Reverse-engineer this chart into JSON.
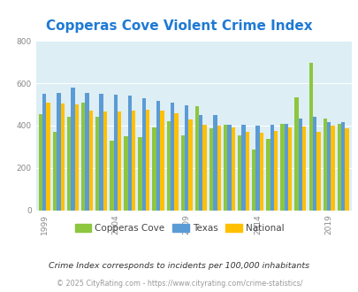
{
  "title": "Copperas Cove Violent Crime Index",
  "years": [
    1999,
    2000,
    2001,
    2002,
    2003,
    2004,
    2005,
    2006,
    2007,
    2008,
    2009,
    2010,
    2011,
    2012,
    2013,
    2014,
    2015,
    2016,
    2017,
    2018,
    2019,
    2020
  ],
  "copperas_cove": [
    455,
    370,
    440,
    510,
    440,
    330,
    350,
    345,
    390,
    420,
    355,
    490,
    385,
    405,
    355,
    285,
    335,
    410,
    535,
    695,
    435,
    410
  ],
  "texas": [
    550,
    555,
    580,
    555,
    550,
    545,
    540,
    530,
    515,
    510,
    495,
    450,
    450,
    405,
    405,
    400,
    405,
    410,
    435,
    440,
    415,
    415
  ],
  "national": [
    510,
    505,
    500,
    470,
    465,
    465,
    470,
    475,
    470,
    460,
    430,
    405,
    400,
    390,
    370,
    365,
    375,
    390,
    395,
    370,
    400,
    385
  ],
  "colors": {
    "copperas_cove": "#8dc63f",
    "texas": "#5b9bd5",
    "national": "#ffc000"
  },
  "ylim": [
    0,
    800
  ],
  "yticks": [
    0,
    200,
    400,
    600,
    800
  ],
  "plot_bg": "#ddeef5",
  "title_color": "#1f7ad4",
  "title_fontsize": 11,
  "footnote1": "Crime Index corresponds to incidents per 100,000 inhabitants",
  "footnote2": "© 2025 CityRating.com - https://www.cityrating.com/crime-statistics/",
  "legend_labels": [
    "Copperas Cove",
    "Texas",
    "National"
  ],
  "bar_width": 0.27,
  "grid_color": "#ffffff",
  "labeled_years": [
    1999,
    2004,
    2009,
    2014,
    2019
  ]
}
